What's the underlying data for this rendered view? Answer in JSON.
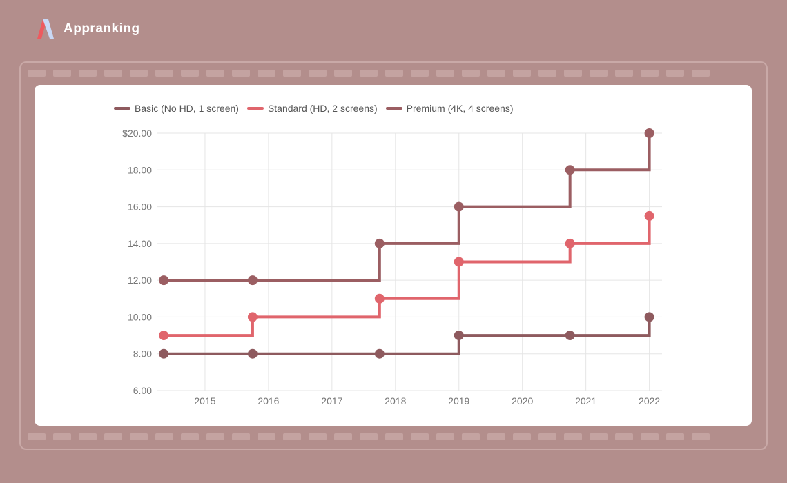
{
  "brand": {
    "name": "Appranking",
    "logo_icon": "appranking-logo-icon"
  },
  "colors": {
    "background": "#b38e8c",
    "card": "#ffffff",
    "grid": "#e5e5e5"
  },
  "chart_data": {
    "type": "line",
    "step": true,
    "xlabel": "",
    "ylabel": "",
    "ylim": [
      6,
      20
    ],
    "xlim": [
      2014.25,
      2022.2
    ],
    "x_ticks": [
      "2015",
      "2016",
      "2017",
      "2018",
      "2019",
      "2020",
      "2021",
      "2022"
    ],
    "y_ticks": [
      "$20.00",
      "18.00",
      "16.00",
      "14.00",
      "12.00",
      "10.00",
      "8.00",
      "6.00"
    ],
    "grid": true,
    "legend_position": "top-left",
    "series": [
      {
        "name": "Basic (No HD, 1 screen)",
        "color": "#8e5a5e",
        "points": [
          [
            2014.35,
            8
          ],
          [
            2015.75,
            8
          ],
          [
            2017.75,
            8
          ],
          [
            2019.0,
            9
          ],
          [
            2020.75,
            9
          ],
          [
            2022.0,
            10
          ]
        ]
      },
      {
        "name": "Standard (HD, 2 screens)",
        "color": "#e0656c",
        "points": [
          [
            2014.35,
            9
          ],
          [
            2015.75,
            10
          ],
          [
            2017.75,
            11
          ],
          [
            2019.0,
            13
          ],
          [
            2020.75,
            14
          ],
          [
            2022.0,
            15.5
          ]
        ]
      },
      {
        "name": "Premium (4K, 4 screens)",
        "color": "#9b5e62",
        "points": [
          [
            2014.35,
            12
          ],
          [
            2015.75,
            12
          ],
          [
            2017.75,
            14
          ],
          [
            2019.0,
            16
          ],
          [
            2020.75,
            18
          ],
          [
            2022.0,
            20
          ]
        ]
      }
    ]
  }
}
